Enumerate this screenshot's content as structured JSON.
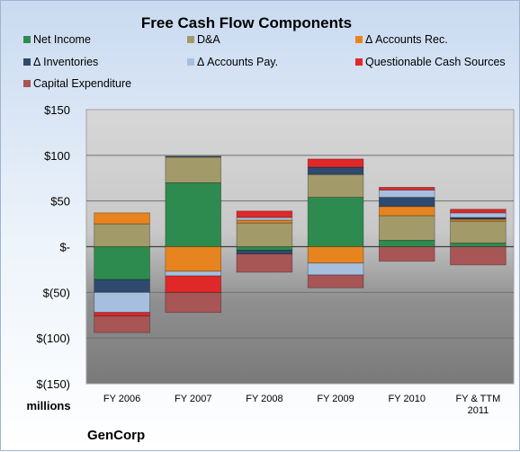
{
  "chart_data": {
    "type": "bar",
    "stacked": true,
    "title": "Free Cash Flow Components",
    "units_label": "millions",
    "brand": "GenCorp",
    "categories": [
      "FY 2006",
      "FY 2007",
      "FY 2008",
      "FY 2009",
      "FY 2010",
      "FY & TTM 2011"
    ],
    "ylim": [
      -150,
      150
    ],
    "yticks": [
      150,
      100,
      50,
      0,
      -50,
      -100,
      -150
    ],
    "ytick_labels": [
      "$150",
      "$100",
      "$50",
      "$-",
      "$(50)",
      "$(100)",
      "$(150)"
    ],
    "grid": true,
    "legend_position": "top",
    "series": [
      {
        "name": "Net Income",
        "color": "#2e8b4f",
        "values": [
          -36,
          70,
          -4,
          54,
          7,
          4
        ]
      },
      {
        "name": "D&A",
        "color": "#a39a6a",
        "values": [
          25,
          28,
          26,
          25,
          27,
          24
        ]
      },
      {
        "name": "Δ Accounts Rec.",
        "color": "#e8841f",
        "values": [
          12,
          -27,
          3,
          -18,
          10,
          2
        ]
      },
      {
        "name": "Δ Inventories",
        "color": "#2f4a6e",
        "values": [
          -14,
          1,
          -4,
          8,
          10,
          2
        ]
      },
      {
        "name": "Δ Accounts Pay.",
        "color": "#a6bfde",
        "values": [
          -22,
          -5,
          3,
          -13,
          8,
          5
        ]
      },
      {
        "name": "Questionable Cash Sources",
        "color": "#e02828",
        "values": [
          -4,
          -18,
          7,
          9,
          3,
          4
        ]
      },
      {
        "name": "Capital Expenditure",
        "color": "#a85556",
        "values": [
          -18,
          -22,
          -20,
          -14,
          -16,
          -20
        ]
      }
    ]
  }
}
